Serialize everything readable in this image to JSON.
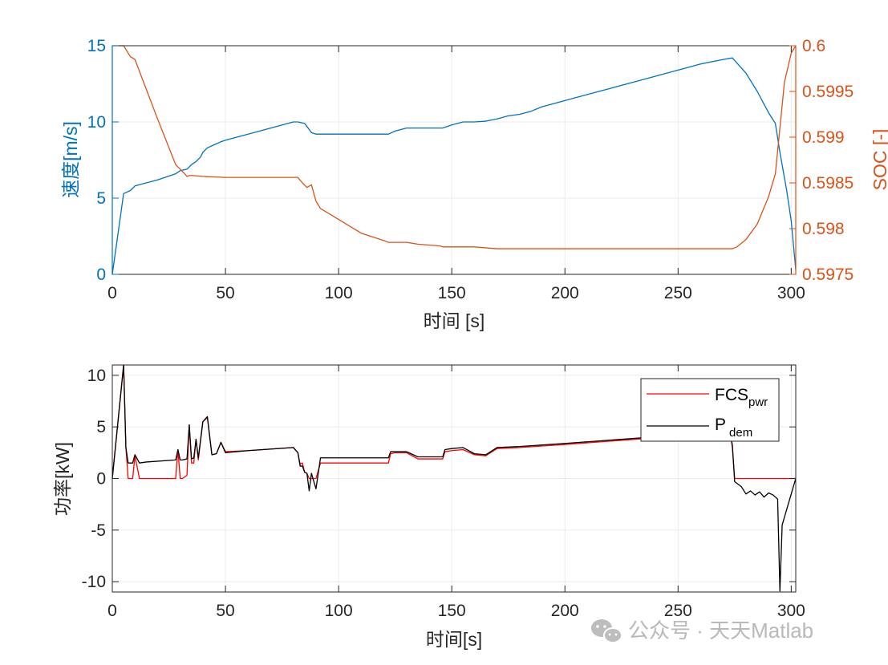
{
  "colors": {
    "speed": "#0072BD",
    "soc": "#D95319",
    "fcs": "#FF0000",
    "pdem": "#000000",
    "axis": "#262626",
    "grid": "#ebebeb"
  },
  "watermark": {
    "text": "公众号 · 天天Matlab",
    "icon": "wechat-icon"
  },
  "chart_data": [
    {
      "type": "line",
      "xlabel": "时间 [s]",
      "ylabel": "速度[m/s]",
      "ylabel_right": "SOC [-]",
      "xlim": [
        0,
        302
      ],
      "ylim": [
        0,
        15
      ],
      "ylim_right": [
        0.5975,
        0.6
      ],
      "x_ticks": [
        "0",
        "50",
        "100",
        "150",
        "200",
        "250",
        "300"
      ],
      "y_ticks": [
        "0",
        "5",
        "10",
        "15"
      ],
      "y_ticks_right": [
        "0.5975",
        "0.598",
        "0.5985",
        "0.599",
        "0.5995",
        "0.6"
      ],
      "grid": true,
      "series": [
        {
          "axis": "left",
          "x": [
            0,
            5,
            8,
            10,
            20,
            28,
            30,
            33,
            35,
            37,
            39,
            40,
            42,
            45,
            48,
            50,
            60,
            70,
            80,
            82,
            85,
            88,
            90,
            100,
            110,
            120,
            122,
            125,
            130,
            140,
            146,
            150,
            155,
            160,
            165,
            170,
            175,
            180,
            185,
            190,
            200,
            210,
            220,
            230,
            240,
            250,
            260,
            270,
            274,
            280,
            285,
            290,
            293,
            295,
            298,
            300,
            302
          ],
          "y": [
            0,
            5.3,
            5.5,
            5.8,
            6.2,
            6.6,
            6.8,
            6.9,
            7.2,
            7.4,
            7.7,
            8.0,
            8.3,
            8.5,
            8.7,
            8.8,
            9.2,
            9.6,
            10.0,
            10.0,
            9.9,
            9.3,
            9.2,
            9.2,
            9.2,
            9.2,
            9.2,
            9.4,
            9.6,
            9.6,
            9.6,
            9.8,
            10.0,
            10.0,
            10.05,
            10.2,
            10.4,
            10.5,
            10.7,
            11.0,
            11.4,
            11.8,
            12.2,
            12.6,
            13.0,
            13.4,
            13.8,
            14.1,
            14.2,
            13.2,
            12.0,
            10.6,
            9.9,
            8.0,
            5.5,
            3.5,
            0.3
          ]
        },
        {
          "axis": "right",
          "x": [
            0,
            5,
            8,
            10,
            20,
            28,
            32,
            33,
            34,
            36,
            40,
            50,
            60,
            70,
            82,
            84,
            86,
            88,
            90,
            92,
            100,
            110,
            120,
            122,
            125,
            130,
            135,
            145,
            146,
            150,
            155,
            160,
            165,
            170,
            200,
            250,
            273,
            274,
            276,
            280,
            285,
            290,
            293,
            295,
            297,
            300,
            302
          ],
          "y": [
            0.6,
            0.6,
            0.59988,
            0.59985,
            0.5992,
            0.5987,
            0.5986,
            0.59857,
            0.59858,
            0.59858,
            0.59857,
            0.59856,
            0.59856,
            0.59856,
            0.59856,
            0.5985,
            0.59845,
            0.59848,
            0.5983,
            0.59822,
            0.5981,
            0.59795,
            0.59787,
            0.59785,
            0.59785,
            0.59785,
            0.59783,
            0.59781,
            0.5978,
            0.5978,
            0.5978,
            0.5978,
            0.59779,
            0.59778,
            0.59778,
            0.59778,
            0.59778,
            0.59778,
            0.5978,
            0.59788,
            0.59805,
            0.59835,
            0.5986,
            0.5991,
            0.5996,
            0.59992,
            0.6
          ]
        }
      ]
    },
    {
      "type": "line",
      "xlabel": "时间[s]",
      "ylabel": "功率[kW]",
      "xlim": [
        0,
        302
      ],
      "ylim": [
        -11,
        11
      ],
      "x_ticks": [
        "0",
        "50",
        "100",
        "150",
        "200",
        "250",
        "300"
      ],
      "y_ticks": [
        "-10",
        "-5",
        "0",
        "5",
        "10"
      ],
      "grid": true,
      "legend": "top-right",
      "series": [
        {
          "name": "FCS_pwr",
          "label_main": "FCS",
          "label_sub": "pwr",
          "x": [
            0,
            5,
            6,
            7,
            8,
            9,
            10,
            12,
            15,
            28,
            29,
            30,
            31,
            33,
            34,
            35,
            36,
            37,
            38,
            40,
            42,
            44,
            46,
            48,
            50,
            60,
            80,
            82,
            83,
            84,
            85,
            86,
            87,
            88,
            90,
            92,
            100,
            110,
            122,
            123,
            125,
            130,
            135,
            146,
            147,
            150,
            155,
            160,
            165,
            170,
            180,
            200,
            250,
            273,
            274,
            275,
            280,
            290,
            300,
            302
          ],
          "y": [
            0,
            11,
            3,
            0,
            0,
            0,
            2.2,
            0,
            0,
            0,
            2.8,
            0,
            0,
            0.3,
            5.2,
            1.5,
            1.5,
            3.8,
            1.8,
            5.5,
            5.9,
            2.3,
            2.4,
            3.5,
            2.6,
            2.7,
            3.0,
            2.5,
            1.4,
            1.5,
            0.6,
            0.5,
            0,
            0,
            0,
            1.5,
            1.5,
            1.5,
            1.5,
            2.4,
            2.5,
            2.5,
            1.9,
            1.9,
            2.6,
            2.7,
            2.8,
            2.3,
            2.2,
            2.9,
            3.0,
            3.3,
            4.1,
            4.5,
            3.0,
            0,
            0,
            0,
            0,
            0
          ]
        },
        {
          "name": "P_dem",
          "label_main": "P",
          "label_sub": "dem",
          "x": [
            0,
            5,
            6,
            7,
            8,
            9,
            10,
            12,
            15,
            28,
            29,
            30,
            31,
            33,
            34,
            35,
            36,
            37,
            38,
            40,
            42,
            44,
            46,
            48,
            50,
            60,
            80,
            82,
            83,
            84,
            85,
            86,
            87,
            88,
            90,
            92,
            100,
            110,
            122,
            123,
            125,
            130,
            135,
            146,
            147,
            150,
            155,
            160,
            165,
            170,
            180,
            200,
            250,
            273,
            274,
            275,
            278,
            280,
            282,
            284,
            286,
            288,
            290,
            292,
            294,
            295,
            296,
            298,
            300,
            302
          ],
          "y": [
            0,
            11,
            3,
            1.5,
            1.5,
            1.5,
            2.3,
            1.5,
            1.6,
            1.8,
            2.8,
            1.8,
            1.8,
            1.9,
            5.2,
            1.9,
            2.0,
            3.8,
            2.0,
            5.5,
            6.0,
            2.3,
            2.4,
            3.5,
            2.5,
            2.7,
            3.0,
            2.5,
            1.2,
            1.2,
            0.6,
            0.5,
            -1.2,
            0.5,
            -1.0,
            2.0,
            2.0,
            2.0,
            2.0,
            2.6,
            2.6,
            2.6,
            2.1,
            2.1,
            2.8,
            2.9,
            3.0,
            2.4,
            2.3,
            3.0,
            3.1,
            3.4,
            4.2,
            4.5,
            3.2,
            -0.3,
            -0.8,
            -1.5,
            -1.2,
            -1.6,
            -1.3,
            -1.8,
            -1.4,
            -1.6,
            -2.0,
            -10.9,
            -4.5,
            -3.0,
            -1.5,
            0
          ]
        }
      ]
    }
  ]
}
